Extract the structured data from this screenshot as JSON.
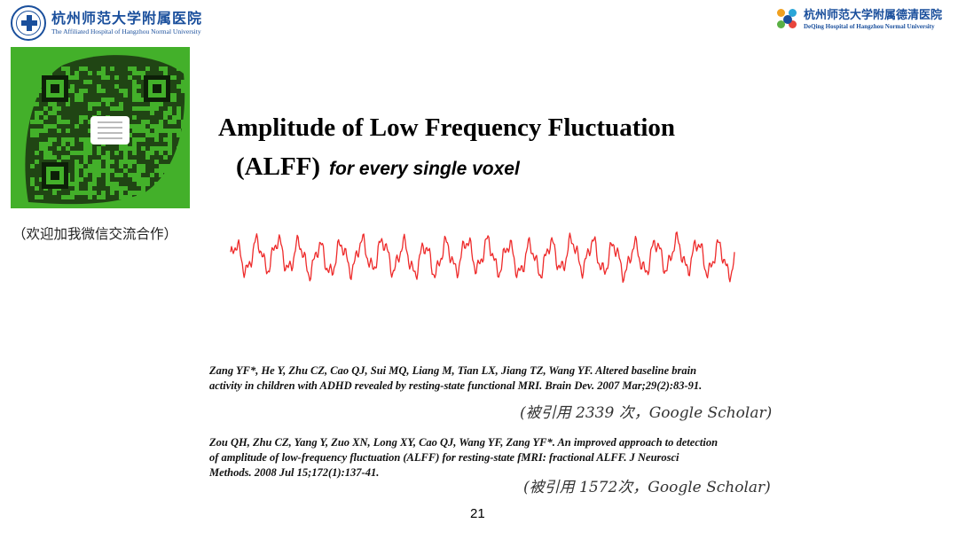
{
  "header": {
    "left_logo": {
      "name_cn": "杭州师范大学附属医院",
      "name_en": "The Affiliated Hospital of Hangzhou Normal University"
    },
    "right_logo": {
      "name_cn": "杭州师范大学附属德清医院",
      "name_en": "DeQing Hospital of Hangzhou Normal University"
    }
  },
  "qr": {
    "note": "（欢迎加我微信交流合作）"
  },
  "slide": {
    "title": "Amplitude of Low Frequency Fluctuation",
    "subtitle": "(ALFF)",
    "subtitle_note": "for every single voxel"
  },
  "references": [
    {
      "text": "Zang YF*, He Y, Zhu CZ, Cao QJ, Sui MQ, Liang M, Tian LX, Jiang TZ, Wang YF. Altered baseline brain activity in children with ADHD revealed by resting-state functional MRI. Brain Dev. 2007 Mar;29(2):83-91.",
      "citation": "(被引用 2339 次，Google Scholar)"
    },
    {
      "text": "Zou QH, Zhu CZ, Yang Y, Zuo XN, Long XY, Cao QJ, Wang YF, Zang YF*. An improved approach to detection of amplitude of low-frequency fluctuation (ALFF) for resting-state fMRI: fractional ALFF. J Neurosci Methods. 2008 Jul 15;172(1):137-41.",
      "citation": "(被引用 1572次，Google Scholar)"
    }
  ],
  "page_number": "21",
  "colors": {
    "brand_blue": "#1a4f9c",
    "qr_green": "#43b02a",
    "signal_red": "#ee2a2a"
  },
  "icons": [
    "hospital-seal-icon",
    "flower-logo-icon",
    "qr-code-icon"
  ]
}
